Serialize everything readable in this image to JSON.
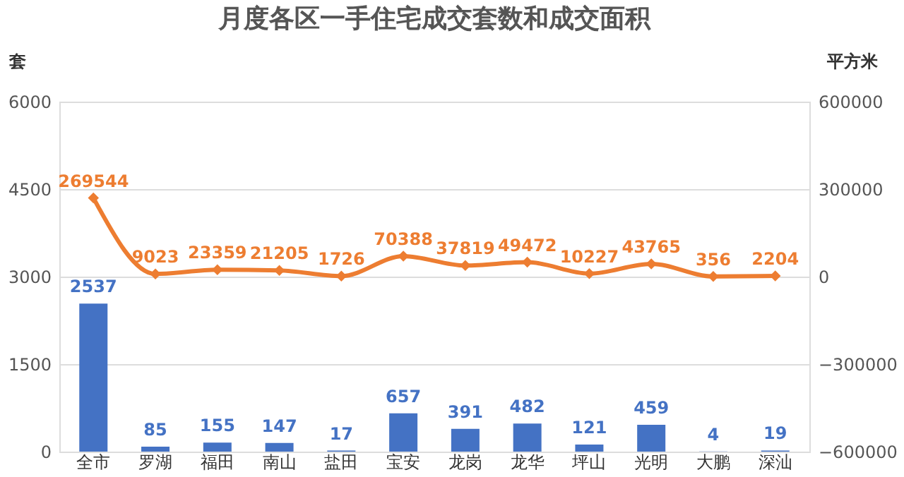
{
  "chart_data": {
    "type": "bar",
    "title": "月度各区一手住宅成交套数和成交面积",
    "ylabel": "套",
    "y2label": "平方米",
    "categories": [
      "全市",
      "罗湖",
      "福田",
      "南山",
      "盐田",
      "宝安",
      "龙岗",
      "龙华",
      "坪山",
      "光明",
      "大鹏",
      "深汕"
    ],
    "series": [
      {
        "color": "#4472c4",
        "values": [
          2537,
          85,
          155,
          147,
          17,
          657,
          391,
          482,
          121,
          459,
          4,
          19
        ]
      },
      {
        "type": "line",
        "axis": "y2",
        "color": "#ed7d31",
        "marker": "diamond",
        "line_style": "solid",
        "values": [
          269544,
          9023,
          23359,
          21205,
          1726,
          70388,
          37819,
          49472,
          10227,
          43765,
          356,
          2204
        ]
      }
    ],
    "ylim": [
      0,
      6000
    ],
    "yticks": [
      0,
      1500,
      3000,
      4500,
      6000
    ],
    "y2lim": [
      -600000,
      600000
    ],
    "y2ticks": [
      -600000,
      -300000,
      0,
      300000,
      600000
    ],
    "data_labels": true,
    "grid": "y",
    "legend": false
  }
}
